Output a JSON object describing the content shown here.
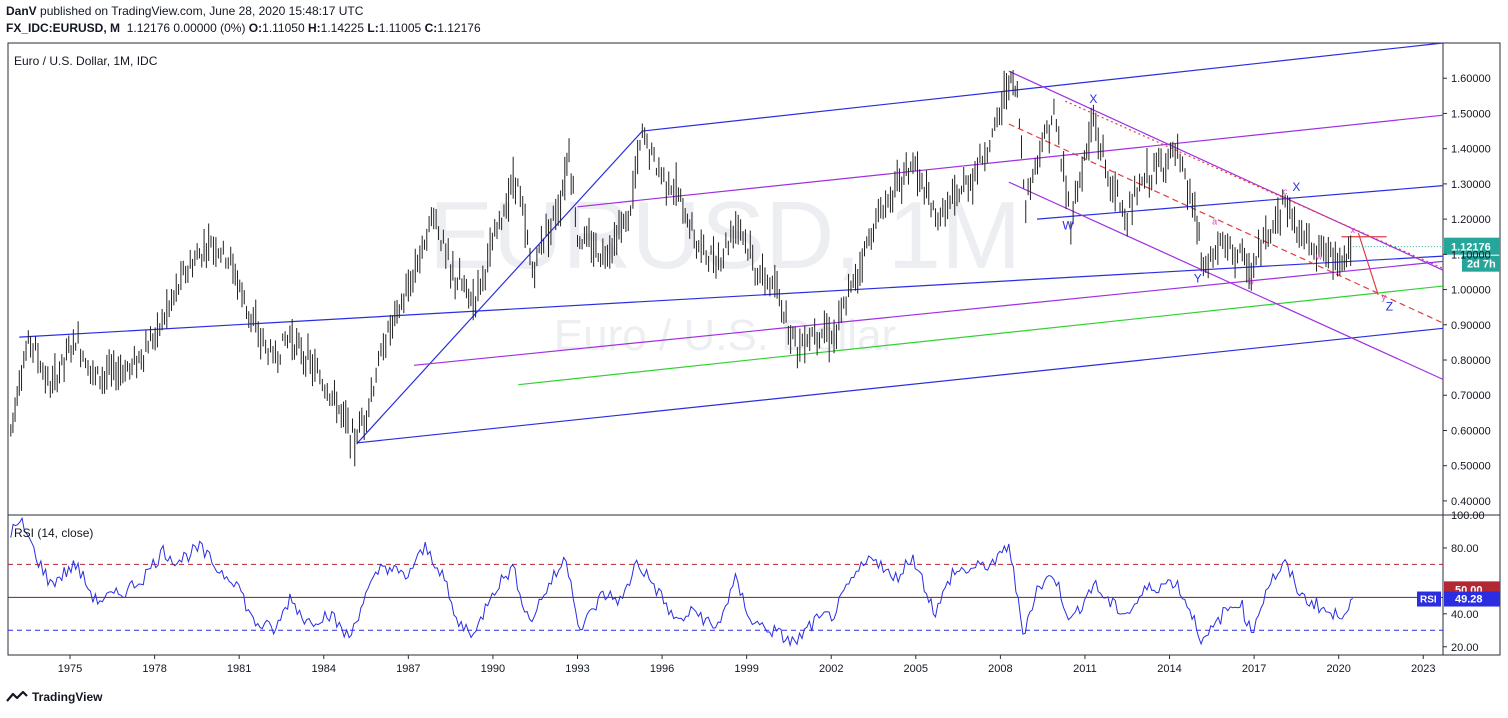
{
  "header": {
    "line1_user": "DanV",
    "line1_rest": "published on TradingView.com, June 28, 2020 15:48:17 UTC",
    "symbol": "FX_IDC:EURUSD, M",
    "quote": "1.12176 0.00000 (0%)",
    "o_label": "O:",
    "o": "1.11050",
    "h_label": "H:",
    "h": "1.14225",
    "l_label": "L:",
    "l": "1.11005",
    "c_label": "C:",
    "c": "1.12176"
  },
  "chart_data": [
    {
      "type": "line",
      "title": "Euro / U.S. Dollar, 1M, IDC",
      "watermark_symbol": "EURUSD, 1M",
      "watermark_name": "Euro / U.S. Dollar",
      "x_ticks": [
        "1975",
        "1978",
        "1981",
        "1984",
        "1987",
        "1990",
        "1993",
        "1996",
        "1999",
        "2002",
        "2005",
        "2008",
        "2011",
        "2014",
        "2017",
        "2020",
        "2023"
      ],
      "y_ticks": [
        "1.60000",
        "1.50000",
        "1.40000",
        "1.30000",
        "1.20000",
        "1.10000",
        "1.00000",
        "0.90000",
        "0.80000",
        "0.70000",
        "0.60000",
        "0.50000",
        "0.40000"
      ],
      "ylim": [
        0.36,
        1.7
      ],
      "xlim": [
        1972.8,
        2023.7
      ],
      "price_path": [
        [
          1972.9,
          0.6
        ],
        [
          1973.2,
          0.75
        ],
        [
          1973.6,
          0.86
        ],
        [
          1974.3,
          0.72
        ],
        [
          1975.2,
          0.86
        ],
        [
          1975.9,
          0.75
        ],
        [
          1977.2,
          0.78
        ],
        [
          1978.1,
          0.88
        ],
        [
          1979.1,
          1.05
        ],
        [
          1980.0,
          1.14
        ],
        [
          1980.7,
          1.08
        ],
        [
          1981.5,
          0.9
        ],
        [
          1982.2,
          0.8
        ],
        [
          1982.8,
          0.87
        ],
        [
          1983.6,
          0.78
        ],
        [
          1984.3,
          0.7
        ],
        [
          1985.1,
          0.57
        ],
        [
          1985.6,
          0.68
        ],
        [
          1986.2,
          0.86
        ],
        [
          1987.0,
          1.0
        ],
        [
          1987.9,
          1.22
        ],
        [
          1988.5,
          1.05
        ],
        [
          1989.3,
          0.97
        ],
        [
          1989.9,
          1.1
        ],
        [
          1990.8,
          1.33
        ],
        [
          1991.4,
          1.05
        ],
        [
          1991.8,
          1.15
        ],
        [
          1992.4,
          1.25
        ],
        [
          1992.7,
          1.4
        ],
        [
          1993.0,
          1.15
        ],
        [
          1993.9,
          1.1
        ],
        [
          1994.8,
          1.2
        ],
        [
          1995.3,
          1.44
        ],
        [
          1995.8,
          1.35
        ],
        [
          1996.5,
          1.28
        ],
        [
          1997.3,
          1.12
        ],
        [
          1998.0,
          1.08
        ],
        [
          1998.7,
          1.2
        ],
        [
          1999.3,
          1.06
        ],
        [
          2000.0,
          1.0
        ],
        [
          2000.8,
          0.84
        ],
        [
          2001.5,
          0.89
        ],
        [
          2002.1,
          0.87
        ],
        [
          2002.7,
          1.0
        ],
        [
          2003.5,
          1.18
        ],
        [
          2004.1,
          1.27
        ],
        [
          2004.9,
          1.36
        ],
        [
          2005.7,
          1.2
        ],
        [
          2006.3,
          1.25
        ],
        [
          2007.1,
          1.33
        ],
        [
          2007.8,
          1.45
        ],
        [
          2008.3,
          1.6
        ],
        [
          2008.6,
          1.55
        ],
        [
          2008.9,
          1.25
        ],
        [
          2009.4,
          1.4
        ],
        [
          2009.9,
          1.5
        ],
        [
          2010.5,
          1.2
        ],
        [
          2011.3,
          1.48
        ],
        [
          2011.9,
          1.3
        ],
        [
          2012.5,
          1.21
        ],
        [
          2013.2,
          1.32
        ],
        [
          2014.2,
          1.39
        ],
        [
          2014.9,
          1.22
        ],
        [
          2015.2,
          1.05
        ],
        [
          2015.8,
          1.13
        ],
        [
          2016.5,
          1.1
        ],
        [
          2016.9,
          1.04
        ],
        [
          2017.5,
          1.17
        ],
        [
          2018.1,
          1.25
        ],
        [
          2018.6,
          1.16
        ],
        [
          2019.3,
          1.12
        ],
        [
          2019.8,
          1.09
        ],
        [
          2020.2,
          1.1
        ],
        [
          2020.5,
          1.12
        ]
      ],
      "last_price_label": "1.12176",
      "countdown_label": "2d 7h",
      "wave_labels": [
        {
          "text": "X",
          "x": 2011.3,
          "y": 1.53,
          "color": "#2a2ee0"
        },
        {
          "text": "W",
          "x": 2010.4,
          "y": 1.17,
          "color": "#2a2ee0"
        },
        {
          "text": "Y",
          "x": 2015.0,
          "y": 1.02,
          "color": "#2a2ee0"
        },
        {
          "text": "X",
          "x": 2018.5,
          "y": 1.28,
          "color": "#2a2ee0"
        },
        {
          "text": "Z",
          "x": 2021.8,
          "y": 0.94,
          "color": "#2a2ee0"
        },
        {
          "text": "a",
          "x": 2015.6,
          "y": 1.185,
          "color": "#e040c0"
        },
        {
          "text": "b",
          "x": 2016.9,
          "y": 1.015,
          "color": "#e040c0"
        },
        {
          "text": "c",
          "x": 2018.1,
          "y": 1.27,
          "color": "#e040c0"
        },
        {
          "text": "w",
          "x": 2019.3,
          "y": 1.085,
          "color": "#e040c0"
        },
        {
          "text": "x",
          "x": 2020.5,
          "y": 1.16,
          "color": "#e040c0"
        },
        {
          "text": "y",
          "x": 2021.6,
          "y": 0.97,
          "color": "#e040c0"
        }
      ],
      "drawings": [
        {
          "kind": "line",
          "color": "#2a2ee0",
          "pts": [
            [
              1973.2,
              0.865
            ],
            [
              2023.7,
              1.095
            ]
          ]
        },
        {
          "kind": "line",
          "color": "#2a2ee0",
          "pts": [
            [
              1995.3,
              1.45
            ],
            [
              2023.7,
              1.7
            ]
          ]
        },
        {
          "kind": "line",
          "color": "#2a2ee0",
          "pts": [
            [
              1985.2,
              0.565
            ],
            [
              2023.7,
              0.89
            ]
          ]
        },
        {
          "kind": "line",
          "color": "#2a2ee0",
          "pts": [
            [
              1985.2,
              0.565
            ],
            [
              1995.3,
              1.45
            ]
          ]
        },
        {
          "kind": "line",
          "color": "#2a2ee0",
          "pts": [
            [
              2009.3,
              1.2
            ],
            [
              2023.7,
              1.295
            ]
          ]
        },
        {
          "kind": "line",
          "color": "#a030e0",
          "pts": [
            [
              1993.0,
              1.235
            ],
            [
              2023.7,
              1.495
            ]
          ]
        },
        {
          "kind": "line",
          "color": "#a030e0",
          "pts": [
            [
              1987.2,
              0.785
            ],
            [
              2023.7,
              1.08
            ]
          ]
        },
        {
          "kind": "line",
          "color": "#34d034",
          "pts": [
            [
              1990.9,
              0.73
            ],
            [
              2023.7,
              1.01
            ]
          ]
        },
        {
          "kind": "line",
          "color": "#a030e0",
          "pts": [
            [
              2008.3,
              1.62
            ],
            [
              2023.7,
              1.055
            ]
          ]
        },
        {
          "kind": "line",
          "color": "#a030e0",
          "pts": [
            [
              2008.3,
              1.305
            ],
            [
              2023.7,
              0.745
            ]
          ]
        },
        {
          "kind": "dash",
          "color": "#e04040",
          "pts": [
            [
              2008.3,
              1.47
            ],
            [
              2023.7,
              0.905
            ]
          ]
        },
        {
          "kind": "dot",
          "color": "#e04040",
          "pts": [
            [
              2010.3,
              1.535
            ],
            [
              2023.7,
              1.06
            ]
          ]
        },
        {
          "kind": "line",
          "color": "#e04040",
          "pts": [
            [
              2020.1,
              1.15
            ],
            [
              2021.7,
              1.15
            ]
          ]
        },
        {
          "kind": "line",
          "color": "#e04040",
          "pts": [
            [
              2020.7,
              1.16
            ],
            [
              2021.4,
              0.985
            ]
          ]
        }
      ]
    },
    {
      "type": "line",
      "title": "RSI (14, close)",
      "ylim": [
        15,
        100
      ],
      "y_ticks": [
        "100.00",
        "80.00",
        "40.00",
        "20.00"
      ],
      "levels": [
        70,
        50,
        30
      ],
      "level_label": "50.00",
      "series_label": "RSI",
      "last_value_label": "49.28",
      "rsi_path": [
        [
          1972.9,
          90
        ],
        [
          1973.3,
          95
        ],
        [
          1973.8,
          75
        ],
        [
          1974.3,
          58
        ],
        [
          1975.2,
          70
        ],
        [
          1975.9,
          48
        ],
        [
          1976.8,
          52
        ],
        [
          1977.6,
          62
        ],
        [
          1978.3,
          78
        ],
        [
          1978.8,
          72
        ],
        [
          1979.6,
          80
        ],
        [
          1980.3,
          66
        ],
        [
          1980.9,
          60
        ],
        [
          1981.5,
          35
        ],
        [
          1982.3,
          30
        ],
        [
          1982.8,
          50
        ],
        [
          1983.4,
          35
        ],
        [
          1984.2,
          40
        ],
        [
          1984.9,
          25
        ],
        [
          1985.4,
          48
        ],
        [
          1986.1,
          70
        ],
        [
          1986.9,
          62
        ],
        [
          1987.6,
          80
        ],
        [
          1988.2,
          65
        ],
        [
          1988.7,
          35
        ],
        [
          1989.4,
          28
        ],
        [
          1989.9,
          52
        ],
        [
          1990.7,
          68
        ],
        [
          1991.3,
          35
        ],
        [
          1991.9,
          55
        ],
        [
          1992.6,
          74
        ],
        [
          1993.1,
          30
        ],
        [
          1993.9,
          52
        ],
        [
          1994.6,
          48
        ],
        [
          1995.1,
          72
        ],
        [
          1995.8,
          55
        ],
        [
          1996.5,
          35
        ],
        [
          1997.2,
          42
        ],
        [
          1997.9,
          30
        ],
        [
          1998.6,
          60
        ],
        [
          1999.2,
          35
        ],
        [
          1999.9,
          30
        ],
        [
          2000.7,
          22
        ],
        [
          2001.4,
          35
        ],
        [
          2002.1,
          40
        ],
        [
          2002.8,
          62
        ],
        [
          2003.5,
          76
        ],
        [
          2004.2,
          60
        ],
        [
          2004.9,
          75
        ],
        [
          2005.7,
          40
        ],
        [
          2006.3,
          65
        ],
        [
          2007.2,
          68
        ],
        [
          2007.9,
          72
        ],
        [
          2008.3,
          83
        ],
        [
          2008.8,
          28
        ],
        [
          2009.3,
          55
        ],
        [
          2009.9,
          64
        ],
        [
          2010.5,
          35
        ],
        [
          2011.3,
          58
        ],
        [
          2011.9,
          46
        ],
        [
          2012.5,
          40
        ],
        [
          2013.2,
          55
        ],
        [
          2014.2,
          60
        ],
        [
          2014.8,
          40
        ],
        [
          2015.2,
          22
        ],
        [
          2015.9,
          40
        ],
        [
          2016.5,
          48
        ],
        [
          2016.9,
          28
        ],
        [
          2017.5,
          58
        ],
        [
          2018.1,
          70
        ],
        [
          2018.7,
          50
        ],
        [
          2019.3,
          45
        ],
        [
          2019.8,
          38
        ],
        [
          2020.2,
          42
        ],
        [
          2020.5,
          49.28
        ]
      ]
    }
  ],
  "footer": {
    "brand": "TradingView"
  }
}
